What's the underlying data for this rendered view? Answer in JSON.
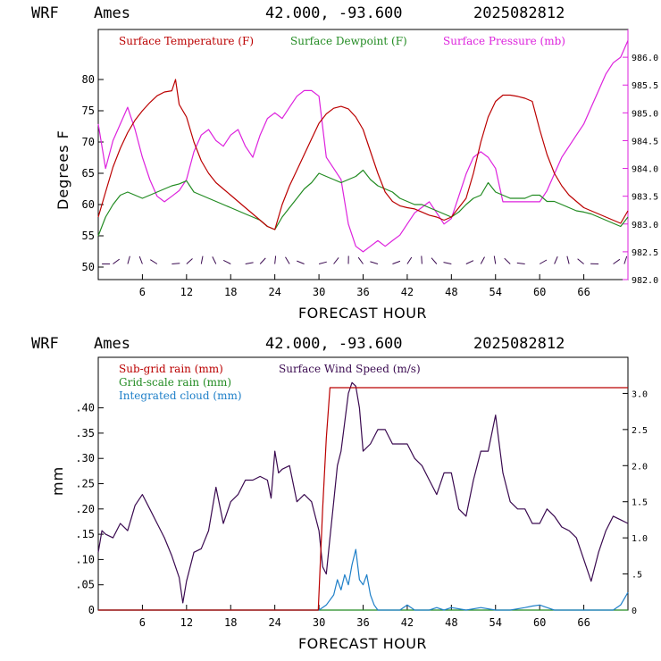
{
  "colors": {
    "temperature": "#bb0000",
    "dewpoint": "#228b22",
    "pressure": "#dd22dd",
    "wind": "#3a0a50",
    "subgrid": "#bb0000",
    "gridscale": "#228b22",
    "cloud": "#1e7fc8",
    "axis_right_top": "#dd22dd"
  },
  "header_top": {
    "model": "WRF",
    "site": "Ames",
    "coords": "42.000, -93.600",
    "init": "2025082812"
  },
  "header_bottom": {
    "model": "WRF",
    "site": "Ames",
    "coords": "42.000, -93.600",
    "init": "2025082812"
  },
  "chart_data": [
    {
      "type": "line",
      "xlabel": "FORECAST HOUR",
      "ylabel": "Degrees F",
      "xlim": [
        0,
        72
      ],
      "ylim": [
        48,
        88
      ],
      "y2lim": [
        982.0,
        986.5
      ],
      "x_ticks": [
        "6",
        "12",
        "18",
        "24",
        "30",
        "36",
        "42",
        "48",
        "54",
        "60",
        "66"
      ],
      "y_ticks": [
        "50",
        "55",
        "60",
        "65",
        "70",
        "75",
        "80"
      ],
      "y2_ticks": [
        "982.0",
        "982.5",
        "983.0",
        "983.5",
        "984.0",
        "984.5",
        "985.0",
        "985.5",
        "986.0"
      ],
      "grid": false,
      "legend_position": "top",
      "series": [
        {
          "name": "Surface Temperature (F)",
          "axis": "left",
          "x": [
            0,
            1,
            2,
            3,
            4,
            5,
            6,
            7,
            8,
            9,
            10,
            10.5,
            11,
            12,
            13,
            14,
            15,
            16,
            17,
            18,
            19,
            20,
            21,
            22,
            23,
            24,
            25,
            26,
            27,
            28,
            29,
            30,
            31,
            32,
            33,
            34,
            35,
            36,
            37,
            38,
            39,
            40,
            41,
            42,
            43,
            44,
            45,
            46,
            47,
            48,
            49,
            50,
            51,
            52,
            53,
            54,
            55,
            56,
            57,
            58,
            59,
            60,
            61,
            62,
            63,
            64,
            65,
            66,
            67,
            68,
            69,
            70,
            71,
            72
          ],
          "values": [
            58,
            62,
            66,
            69,
            71.5,
            73.5,
            75,
            76.3,
            77.4,
            78,
            78.2,
            80,
            76,
            74,
            70,
            67,
            65,
            63.5,
            62.5,
            61.5,
            60.5,
            59.5,
            58.5,
            57.5,
            56.5,
            56,
            60,
            63,
            65.5,
            68,
            70.5,
            73,
            74.5,
            75.4,
            75.7,
            75.3,
            74,
            72,
            68.5,
            65,
            62,
            60.5,
            59.8,
            59.5,
            59.3,
            58.8,
            58.3,
            58,
            57.5,
            58,
            59.5,
            61,
            65,
            70,
            74,
            76.5,
            77.5,
            77.5,
            77.3,
            77,
            76.5,
            72,
            68,
            65,
            63,
            61.5,
            60.5,
            59.5,
            59,
            58.5,
            58,
            57.5,
            57,
            59
          ]
        },
        {
          "name": "Surface Dewpoint (F)",
          "axis": "left",
          "x": [
            0,
            1,
            2,
            3,
            4,
            5,
            6,
            7,
            8,
            9,
            10,
            11,
            12,
            13,
            14,
            15,
            16,
            17,
            18,
            19,
            20,
            21,
            22,
            23,
            24,
            25,
            26,
            27,
            28,
            29,
            30,
            31,
            32,
            33,
            34,
            35,
            36,
            37,
            38,
            39,
            40,
            41,
            42,
            43,
            44,
            45,
            46,
            47,
            48,
            49,
            50,
            51,
            52,
            53,
            54,
            55,
            56,
            57,
            58,
            59,
            60,
            61,
            62,
            63,
            64,
            65,
            66,
            67,
            68,
            69,
            70,
            71,
            72
          ],
          "values": [
            55,
            58,
            60,
            61.5,
            62,
            61.5,
            61,
            61.5,
            62,
            62.5,
            63,
            63.3,
            63.8,
            62,
            61.5,
            61,
            60.5,
            60,
            59.5,
            59,
            58.5,
            58,
            57.5,
            56.5,
            56,
            58,
            59.5,
            61,
            62.5,
            63.5,
            65,
            64.5,
            64,
            63.5,
            64,
            64.5,
            65.5,
            64,
            63,
            62.5,
            62,
            61,
            60.5,
            60,
            60,
            59.5,
            59,
            58.5,
            58,
            58.8,
            60,
            61,
            61.5,
            63.5,
            62,
            61.5,
            61,
            61,
            61,
            61.5,
            61.5,
            60.5,
            60.5,
            60,
            59.5,
            59,
            58.8,
            58.5,
            58,
            57.5,
            57,
            56.5,
            58
          ]
        },
        {
          "name": "Surface Pressure (mb)",
          "axis": "right",
          "x": [
            0,
            1,
            2,
            3,
            4,
            5,
            6,
            7,
            8,
            9,
            10,
            11,
            12,
            13,
            14,
            15,
            16,
            17,
            18,
            19,
            20,
            21,
            22,
            23,
            24,
            25,
            26,
            27,
            28,
            29,
            30,
            31,
            32,
            33,
            34,
            35,
            36,
            37,
            38,
            39,
            40,
            41,
            42,
            43,
            44,
            45,
            46,
            47,
            48,
            49,
            50,
            51,
            52,
            53,
            54,
            55,
            56,
            57,
            58,
            59,
            60,
            61,
            62,
            63,
            64,
            65,
            66,
            67,
            68,
            69,
            70,
            71,
            72
          ],
          "values": [
            984.8,
            984.0,
            984.5,
            984.8,
            985.1,
            984.7,
            984.2,
            983.8,
            983.5,
            983.4,
            983.5,
            983.6,
            983.8,
            984.3,
            984.6,
            984.7,
            984.5,
            984.4,
            984.6,
            984.7,
            984.4,
            984.2,
            984.6,
            984.9,
            985.0,
            984.9,
            985.1,
            985.3,
            985.4,
            985.4,
            985.3,
            984.2,
            984.0,
            983.8,
            983.0,
            982.6,
            982.5,
            982.6,
            982.7,
            982.6,
            982.7,
            982.8,
            983.0,
            983.2,
            983.3,
            983.4,
            983.2,
            983.0,
            983.1,
            983.5,
            983.9,
            984.2,
            984.3,
            984.2,
            984.0,
            983.4,
            983.4,
            983.4,
            983.4,
            983.4,
            983.4,
            983.6,
            983.9,
            984.2,
            984.4,
            984.6,
            984.8,
            985.1,
            985.4,
            985.7,
            985.9,
            986.0,
            986.3
          ]
        }
      ]
    },
    {
      "type": "line",
      "xlabel": "FORECAST HOUR",
      "ylabel": "mm",
      "xlim": [
        0,
        72
      ],
      "ylim": [
        0,
        0.5
      ],
      "y2lim": [
        0,
        3.5
      ],
      "x_ticks": [
        "6",
        "12",
        "18",
        "24",
        "30",
        "36",
        "42",
        "48",
        "54",
        "60",
        "66"
      ],
      "y_ticks": [
        "0",
        ".05",
        ".10",
        ".15",
        ".20",
        ".25",
        ".30",
        ".35",
        ".40"
      ],
      "y2_ticks": [
        "0",
        ".5",
        "1.0",
        "1.5",
        "2.0",
        "2.5",
        "3.0"
      ],
      "grid": false,
      "legend_position": "top-left",
      "series": [
        {
          "name": "Sub-grid rain (mm)",
          "axis": "left",
          "x": [
            0,
            29.9,
            30.5,
            31,
            31.5,
            32,
            72
          ],
          "values": [
            0,
            0,
            0.2,
            0.34,
            0.44,
            0.44,
            0.44
          ]
        },
        {
          "name": "Grid-scale rain (mm)",
          "axis": "left",
          "x": [
            0,
            72
          ],
          "values": [
            0,
            0
          ]
        },
        {
          "name": "Integrated cloud (mm)",
          "axis": "left",
          "x": [
            0,
            30,
            31,
            32,
            32.5,
            33,
            33.5,
            34,
            34.5,
            35,
            35.5,
            36,
            36.5,
            37,
            37.5,
            38,
            39,
            40,
            41,
            42,
            43,
            44,
            45,
            46,
            47,
            48,
            50,
            52,
            54,
            56,
            58,
            59,
            60,
            61,
            62,
            64,
            66,
            68,
            70,
            71,
            72
          ],
          "values": [
            0,
            0,
            0.01,
            0.03,
            0.06,
            0.04,
            0.07,
            0.05,
            0.09,
            0.12,
            0.06,
            0.05,
            0.07,
            0.03,
            0.01,
            0,
            0,
            0,
            0,
            0.01,
            0,
            0,
            0,
            0.005,
            0,
            0.005,
            0,
            0.005,
            0,
            0,
            0.005,
            0.008,
            0.01,
            0.005,
            0,
            0,
            0,
            0,
            0,
            0.01,
            0.035
          ]
        },
        {
          "name": "Surface Wind Speed (m/s)",
          "axis": "right",
          "x": [
            0,
            0.5,
            1,
            2,
            3,
            4,
            5,
            6,
            7,
            8,
            9,
            10,
            11,
            11.5,
            12,
            13,
            14,
            15,
            16,
            17,
            18,
            19,
            20,
            21,
            22,
            23,
            23.5,
            24,
            24.5,
            25,
            26,
            27,
            28,
            29,
            30,
            30.5,
            31,
            31.5,
            32,
            32.5,
            33,
            33.5,
            34,
            34.5,
            35,
            35.5,
            36,
            37,
            38,
            39,
            40,
            41,
            42,
            43,
            44,
            45,
            46,
            47,
            48,
            49,
            50,
            51,
            52,
            53,
            54,
            55,
            56,
            57,
            58,
            59,
            60,
            61,
            62,
            63,
            64,
            65,
            66,
            67,
            68,
            69,
            70,
            71,
            72
          ],
          "values": [
            0.8,
            1.1,
            1.05,
            1.0,
            1.2,
            1.1,
            1.45,
            1.6,
            1.4,
            1.2,
            1.0,
            0.75,
            0.45,
            0.1,
            0.4,
            0.8,
            0.85,
            1.1,
            1.7,
            1.2,
            1.5,
            1.6,
            1.8,
            1.8,
            1.85,
            1.8,
            1.55,
            2.2,
            1.9,
            1.95,
            2.0,
            1.5,
            1.6,
            1.5,
            1.1,
            0.6,
            0.5,
            1.0,
            1.5,
            2.0,
            2.2,
            2.6,
            3.0,
            3.15,
            3.1,
            2.8,
            2.2,
            2.3,
            2.5,
            2.5,
            2.3,
            2.3,
            2.3,
            2.1,
            2.0,
            1.8,
            1.6,
            1.9,
            1.9,
            1.4,
            1.3,
            1.8,
            2.2,
            2.2,
            2.7,
            1.9,
            1.5,
            1.4,
            1.4,
            1.2,
            1.2,
            1.4,
            1.3,
            1.15,
            1.1,
            1.0,
            0.7,
            0.4,
            0.8,
            1.1,
            1.3,
            1.25,
            1.2
          ]
        }
      ]
    }
  ],
  "wind_barb_markers": [
    0.5,
    2,
    4,
    6,
    8,
    10,
    12,
    14,
    16,
    18,
    20,
    22,
    24,
    26,
    28,
    30,
    32,
    34,
    36,
    38,
    40,
    42,
    44,
    46,
    48,
    50,
    52,
    54,
    56,
    58,
    60,
    62,
    64,
    66,
    68,
    70,
    71.5
  ]
}
